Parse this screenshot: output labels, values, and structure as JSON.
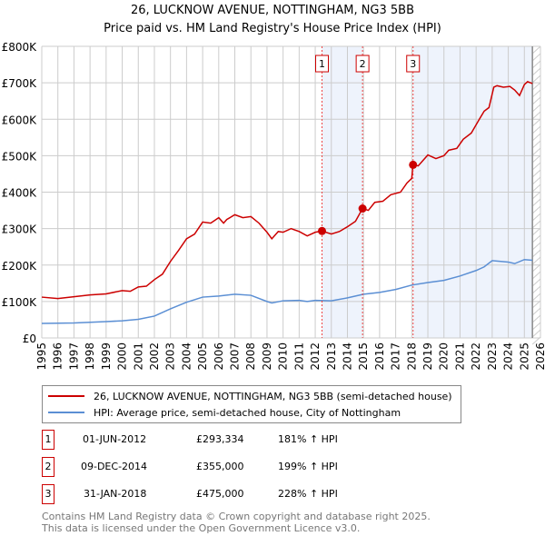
{
  "chart_data": {
    "type": "line",
    "title": "26, LUCKNOW AVENUE, NOTTINGHAM, NG3 5BB",
    "subtitle": "Price paid vs. HM Land Registry's House Price Index (HPI)",
    "xlim": [
      1995,
      2026
    ],
    "ylim": [
      0,
      800000
    ],
    "x_ticks": [
      "1995",
      "1996",
      "1997",
      "1998",
      "1999",
      "2000",
      "2001",
      "2002",
      "2003",
      "2004",
      "2005",
      "2006",
      "2007",
      "2008",
      "2009",
      "2010",
      "2011",
      "2012",
      "2013",
      "2014",
      "2015",
      "2016",
      "2017",
      "2018",
      "2019",
      "2020",
      "2021",
      "2022",
      "2023",
      "2024",
      "2025",
      "2026"
    ],
    "y_ticks": [
      {
        "v": 0,
        "label": "£0"
      },
      {
        "v": 100000,
        "label": "£100K"
      },
      {
        "v": 200000,
        "label": "£200K"
      },
      {
        "v": 300000,
        "label": "£300K"
      },
      {
        "v": 400000,
        "label": "£400K"
      },
      {
        "v": 500000,
        "label": "£500K"
      },
      {
        "v": 600000,
        "label": "£600K"
      },
      {
        "v": 700000,
        "label": "£700K"
      },
      {
        "v": 800000,
        "label": "£800K"
      }
    ],
    "grid": true,
    "series": [
      {
        "name": "26, LUCKNOW AVENUE, NOTTINGHAM, NG3 5BB (semi-detached house)",
        "color": "#cc0000",
        "x": [
          1995,
          1996,
          1997,
          1998,
          1999,
          2000,
          2000.5,
          2001,
          2001.5,
          2002,
          2002.5,
          2003,
          2003.5,
          2004,
          2004.5,
          2005,
          2005.5,
          2006,
          2006.3,
          2006.5,
          2007,
          2007.5,
          2008,
          2008.5,
          2009,
          2009.3,
          2009.7,
          2010,
          2010.5,
          2011,
          2011.5,
          2012,
          2012.42,
          2013,
          2013.5,
          2014,
          2014.5,
          2014.94,
          2015.3,
          2015.7,
          2016.2,
          2016.7,
          2017.3,
          2017.7,
          2018.0,
          2018.08,
          2018.4,
          2019,
          2019.5,
          2020,
          2020.3,
          2020.8,
          2021.2,
          2021.7,
          2022.2,
          2022.5,
          2022.8,
          2023.1,
          2023.3,
          2023.7,
          2024.1,
          2024.4,
          2024.7,
          2025.0,
          2025.2,
          2025.5
        ],
        "y": [
          112000,
          108000,
          113000,
          118000,
          121000,
          130000,
          128000,
          140000,
          142000,
          160000,
          175000,
          210000,
          240000,
          272000,
          285000,
          318000,
          315000,
          330000,
          315000,
          325000,
          338000,
          330000,
          333000,
          315000,
          290000,
          272000,
          292000,
          290000,
          300000,
          292000,
          280000,
          290000,
          293334,
          285000,
          292000,
          305000,
          320000,
          355000,
          350000,
          372000,
          375000,
          393000,
          400000,
          425000,
          438000,
          475000,
          472000,
          502000,
          492000,
          500000,
          515000,
          520000,
          545000,
          562000,
          600000,
          622000,
          632000,
          688000,
          692000,
          688000,
          690000,
          680000,
          665000,
          695000,
          703000,
          698000
        ]
      },
      {
        "name": "HPI: Average price, semi-detached house, City of Nottingham",
        "color": "#5b8fd4",
        "x": [
          1995,
          1997,
          1998,
          1999,
          2000,
          2001,
          2002,
          2003,
          2004,
          2005,
          2006,
          2007,
          2008,
          2009,
          2009.3,
          2010,
          2011,
          2011.5,
          2012,
          2013,
          2014,
          2015,
          2016,
          2017,
          2018,
          2019,
          2020,
          2021,
          2022,
          2022.5,
          2023,
          2024,
          2024.4,
          2025,
          2025.5
        ],
        "y": [
          40000,
          41000,
          43000,
          45000,
          47000,
          51000,
          60000,
          80000,
          98000,
          112000,
          115000,
          120000,
          117000,
          100000,
          96000,
          102000,
          103000,
          100000,
          103000,
          102000,
          110000,
          120000,
          125000,
          133000,
          145000,
          152000,
          158000,
          170000,
          185000,
          195000,
          212000,
          208000,
          204000,
          215000,
          213000
        ]
      }
    ],
    "sales": [
      {
        "id": "1",
        "x": 2012.42,
        "date": "01-JUN-2012",
        "price": 293334,
        "price_label": "£293,334",
        "hpi": "181% ↑ HPI"
      },
      {
        "id": "2",
        "x": 2014.94,
        "date": "09-DEC-2014",
        "price": 355000,
        "price_label": "£355,000",
        "hpi": "199% ↑ HPI"
      },
      {
        "id": "3",
        "x": 2018.08,
        "date": "31-JAN-2018",
        "price": 475000,
        "price_label": "£475,000",
        "hpi": "228% ↑ HPI"
      }
    ],
    "forecast_start": 2025.5,
    "legend_placement": "below"
  },
  "footer": {
    "line1": "Contains HM Land Registry data © Crown copyright and database right 2025.",
    "line2": "This data is licensed under the Open Government Licence v3.0."
  }
}
